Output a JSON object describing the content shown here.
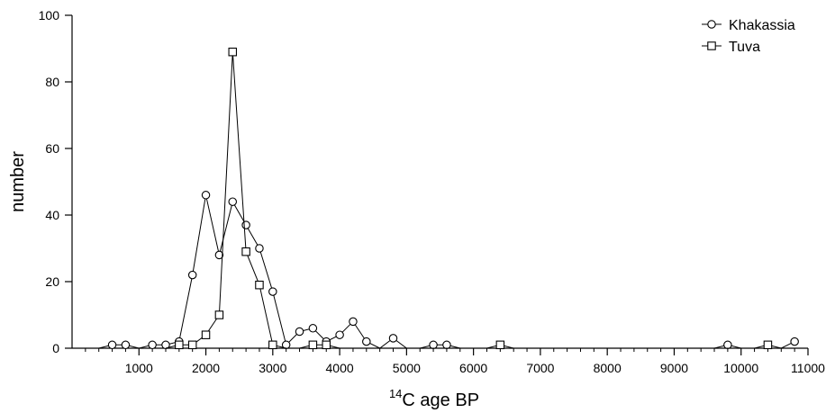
{
  "chart_data": {
    "type": "line",
    "xlabel_superscript": "14",
    "xlabel": "C age BP",
    "ylabel": "number",
    "xlim": [
      0,
      11000
    ],
    "ylim": [
      0,
      100
    ],
    "x_major_ticks": [
      1000,
      2000,
      3000,
      4000,
      5000,
      6000,
      7000,
      8000,
      9000,
      10000,
      11000
    ],
    "x_minor_step": 200,
    "y_ticks": [
      0,
      20,
      40,
      60,
      80,
      100
    ],
    "grid": false,
    "legend_position": "top-right",
    "series": [
      {
        "name": "Khakassia",
        "marker": "circle",
        "points": [
          [
            400,
            0
          ],
          [
            600,
            1
          ],
          [
            800,
            1
          ],
          [
            1000,
            0
          ],
          [
            1200,
            1
          ],
          [
            1400,
            1
          ],
          [
            1600,
            2
          ],
          [
            1800,
            22
          ],
          [
            2000,
            46
          ],
          [
            2200,
            28
          ],
          [
            2400,
            44
          ],
          [
            2600,
            37
          ],
          [
            2800,
            30
          ],
          [
            3000,
            17
          ],
          [
            3200,
            1
          ],
          [
            3400,
            5
          ],
          [
            3600,
            6
          ],
          [
            3800,
            2
          ],
          [
            4000,
            4
          ],
          [
            4200,
            8
          ],
          [
            4400,
            2
          ],
          [
            4600,
            0
          ],
          [
            4800,
            3
          ],
          [
            5000,
            0
          ],
          [
            5200,
            0
          ],
          [
            5400,
            1
          ],
          [
            5600,
            1
          ],
          [
            5800,
            0
          ],
          [
            9600,
            0
          ],
          [
            9800,
            1
          ],
          [
            10000,
            0
          ],
          [
            10600,
            0
          ],
          [
            10800,
            2
          ]
        ],
        "marked_x": [
          600,
          800,
          1200,
          1400,
          1600,
          1800,
          2000,
          2200,
          2400,
          2600,
          2800,
          3000,
          3200,
          3400,
          3600,
          3800,
          4000,
          4200,
          4400,
          4800,
          5400,
          5600,
          9800,
          10800
        ]
      },
      {
        "name": "Tuva",
        "marker": "square",
        "points": [
          [
            1400,
            0
          ],
          [
            1600,
            1
          ],
          [
            1800,
            1
          ],
          [
            2000,
            4
          ],
          [
            2200,
            10
          ],
          [
            2400,
            89
          ],
          [
            2600,
            29
          ],
          [
            2800,
            19
          ],
          [
            3000,
            1
          ],
          [
            3200,
            0
          ],
          [
            3400,
            0
          ],
          [
            3600,
            1
          ],
          [
            3800,
            1
          ],
          [
            4000,
            0
          ],
          [
            6200,
            0
          ],
          [
            6400,
            1
          ],
          [
            6600,
            0
          ],
          [
            10200,
            0
          ],
          [
            10400,
            1
          ],
          [
            10600,
            0
          ]
        ],
        "marked_x": [
          1600,
          1800,
          2000,
          2200,
          2400,
          2600,
          2800,
          3000,
          3600,
          3800,
          6400,
          10400
        ]
      }
    ]
  }
}
